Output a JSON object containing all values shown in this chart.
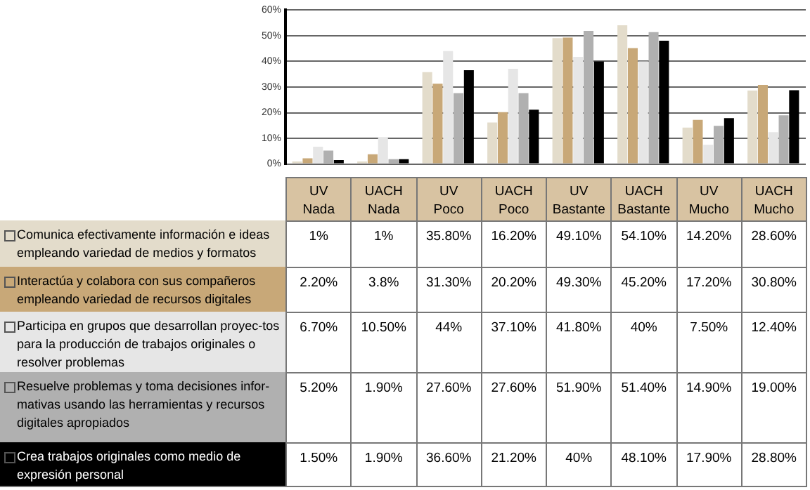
{
  "chart_data": {
    "type": "bar",
    "categories": [
      "UV Nada",
      "UACH Nada",
      "UV Poco",
      "UACH Poco",
      "UV Bastante",
      "UACH Bastante",
      "UV Mucho",
      "UACH Mucho"
    ],
    "series": [
      {
        "name": "Comunica efectivamente información e ideas empleando variedad de medios y formatos",
        "color": "#e3dccb",
        "values": [
          1,
          1,
          35.8,
          16.2,
          49.1,
          54.1,
          14.2,
          28.6
        ],
        "value_labels": [
          "1%",
          "1%",
          "35.80%",
          "16.20%",
          "49.10%",
          "54.10%",
          "14.20%",
          "28.60%"
        ]
      },
      {
        "name": "Interactúa y colabora con sus compañeros empleando variedad de recursos digitales",
        "color": "#c8a878",
        "values": [
          2.2,
          3.8,
          31.3,
          20.2,
          49.3,
          45.2,
          17.2,
          30.8
        ],
        "value_labels": [
          "2.20%",
          "3.8%",
          "31.30%",
          "20.20%",
          "49.30%",
          "45.20%",
          "17.20%",
          "30.80%"
        ]
      },
      {
        "name": "Participa en grupos que desarrollan proyec-tos para la producción de trabajos originales o resolver problemas",
        "color": "#e6e6e6",
        "values": [
          6.7,
          10.5,
          44,
          37.1,
          41.8,
          40,
          7.5,
          12.4
        ],
        "value_labels": [
          "6.70%",
          "10.50%",
          "44%",
          "37.10%",
          "41.80%",
          "40%",
          "7.50%",
          "12.40%"
        ]
      },
      {
        "name": "Resuelve problemas y toma decisiones infor-mativas usando las herramientas y recursos digitales apropiados",
        "color": "#b0b0b0",
        "values": [
          5.2,
          1.9,
          27.6,
          27.6,
          51.9,
          51.4,
          14.9,
          19
        ],
        "value_labels": [
          "5.20%",
          "1.90%",
          "27.60%",
          "27.60%",
          "51.90%",
          "51.40%",
          "14.90%",
          "19.00%"
        ]
      },
      {
        "name": "Crea trabajos originales como medio de expresión personal",
        "color": "#000000",
        "values": [
          1.5,
          1.9,
          36.6,
          21.2,
          40,
          48.1,
          17.9,
          28.8
        ],
        "value_labels": [
          "1.50%",
          "1.90%",
          "36.60%",
          "21.20%",
          "40%",
          "48.10%",
          "17.90%",
          "28.80%"
        ]
      }
    ],
    "ylim": [
      0,
      60
    ],
    "yticks": [
      {
        "value": 0,
        "label": "0%"
      },
      {
        "value": 10,
        "label": "10%"
      },
      {
        "value": 20,
        "label": "20%"
      },
      {
        "value": 30,
        "label": "30%"
      },
      {
        "value": 40,
        "label": "40%"
      },
      {
        "value": 50,
        "label": "50%"
      },
      {
        "value": 60,
        "label": "60%"
      }
    ],
    "grid": "y",
    "legend": "bottom left"
  }
}
